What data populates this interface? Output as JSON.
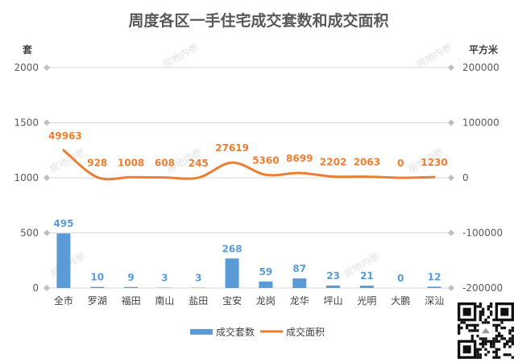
{
  "chart_data": {
    "type": "bar",
    "title": "周度各区一手住宅成交套数和成交面积",
    "categories": [
      "全市",
      "罗湖",
      "福田",
      "南山",
      "盐田",
      "宝安",
      "龙岗",
      "龙华",
      "坪山",
      "光明",
      "大鹏",
      "深汕"
    ],
    "left_axis": {
      "unit": "套",
      "ticks": [
        0,
        500,
        1000,
        1500,
        2000
      ]
    },
    "right_axis": {
      "unit": "平方米",
      "ticks": [
        -200000,
        -100000,
        0,
        100000,
        200000
      ]
    },
    "series": [
      {
        "name": "成交套数",
        "type": "bar",
        "axis": "left",
        "color": "#5b9bd5",
        "values": [
          495,
          10,
          9,
          3,
          3,
          268,
          59,
          87,
          23,
          21,
          0,
          12
        ]
      },
      {
        "name": "成交面积",
        "type": "line",
        "axis": "right",
        "color": "#ed7d31",
        "values": [
          49963,
          928,
          1008,
          608,
          245,
          27619,
          5360,
          8699,
          2202,
          2063,
          0,
          1230
        ]
      }
    ],
    "legend_position": "bottom",
    "grid": true,
    "watermark": "房地内参"
  }
}
